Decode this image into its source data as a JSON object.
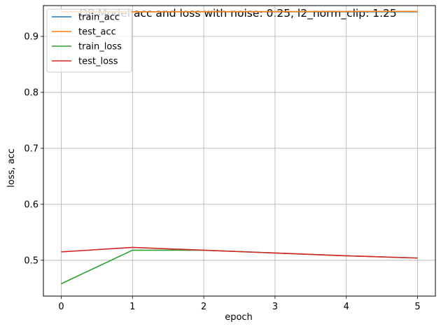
{
  "chart_data": {
    "type": "line",
    "title": "DP Model acc and loss with noise: 0.25, l2_norm_clip: 1.25",
    "xlabel": "epoch",
    "ylabel": "loss, acc",
    "x": [
      0,
      1,
      2,
      3,
      4,
      5
    ],
    "xticks": [
      0,
      1,
      2,
      3,
      4,
      5
    ],
    "yticks": [
      0.5,
      0.6,
      0.7,
      0.8,
      0.9
    ],
    "xlim": [
      -0.25,
      5.25
    ],
    "ylim": [
      0.436,
      0.955
    ],
    "grid": true,
    "legend_position": "top-left",
    "series": [
      {
        "name": "train_acc",
        "color": "#1f77b4",
        "values": [
          0.944,
          0.944,
          0.944,
          0.944,
          0.944,
          0.944
        ]
      },
      {
        "name": "test_acc",
        "color": "#ff7f0e",
        "values": [
          0.944,
          0.944,
          0.9442,
          0.9443,
          0.9445,
          0.9446
        ]
      },
      {
        "name": "train_loss",
        "color": "#2ca02c",
        "values": [
          0.458,
          0.518,
          0.518,
          0.513,
          0.508,
          0.504
        ]
      },
      {
        "name": "test_loss",
        "color": "#d62728",
        "values": [
          0.515,
          0.523,
          0.518,
          0.513,
          0.508,
          0.504
        ]
      }
    ]
  }
}
